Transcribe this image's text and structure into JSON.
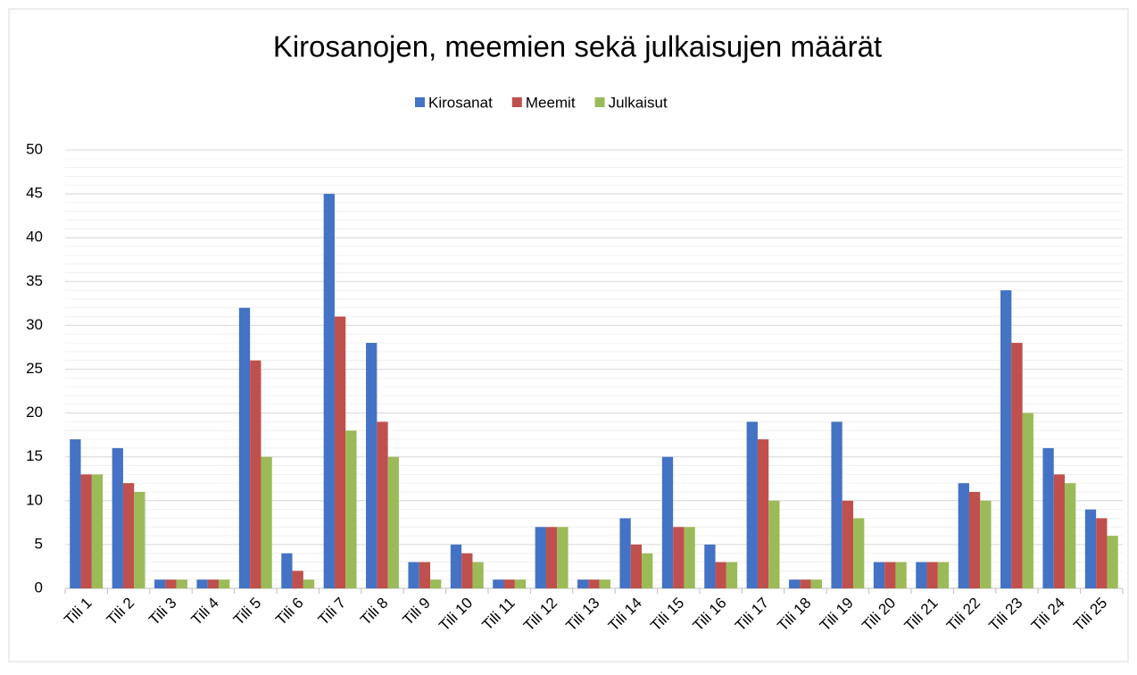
{
  "chart_data": {
    "type": "bar",
    "title": "Kirosanojen, meemien sekä julkaisujen määrät",
    "categories": [
      "Tili 1",
      "Tili 2",
      "Tili 3",
      "Tili 4",
      "Tili 5",
      "Tili 6",
      "Tili 7",
      "Tili 8",
      "Tili 9",
      "Tili 10",
      "Tili 11",
      "Tili 12",
      "Tili 13",
      "Tili 14",
      "Tili 15",
      "Tili 16",
      "Tili 17",
      "Tili 18",
      "Tili 19",
      "Tili 20",
      "Tili 21",
      "Tili 22",
      "Tili 23",
      "Tili 24",
      "Tili 25"
    ],
    "series": [
      {
        "name": "Kirosanat",
        "color": "#4472c4",
        "values": [
          17,
          16,
          1,
          1,
          32,
          4,
          45,
          28,
          3,
          5,
          1,
          7,
          1,
          8,
          15,
          5,
          19,
          1,
          19,
          3,
          3,
          12,
          34,
          16,
          9
        ]
      },
      {
        "name": "Meemit",
        "color": "#c0504d",
        "values": [
          13,
          12,
          1,
          1,
          26,
          2,
          31,
          19,
          3,
          4,
          1,
          7,
          1,
          5,
          7,
          3,
          17,
          1,
          10,
          3,
          3,
          11,
          28,
          13,
          8
        ]
      },
      {
        "name": "Julkaisut",
        "color": "#9bbb59",
        "values": [
          13,
          11,
          1,
          1,
          15,
          1,
          18,
          15,
          1,
          3,
          1,
          7,
          1,
          4,
          7,
          3,
          10,
          1,
          8,
          3,
          3,
          10,
          20,
          12,
          6
        ]
      }
    ],
    "ylim": [
      0,
      50
    ],
    "yticks": [
      0,
      5,
      10,
      15,
      20,
      25,
      30,
      35,
      40,
      45,
      50
    ],
    "grid": true,
    "minor_grid": true,
    "legend": "top"
  }
}
